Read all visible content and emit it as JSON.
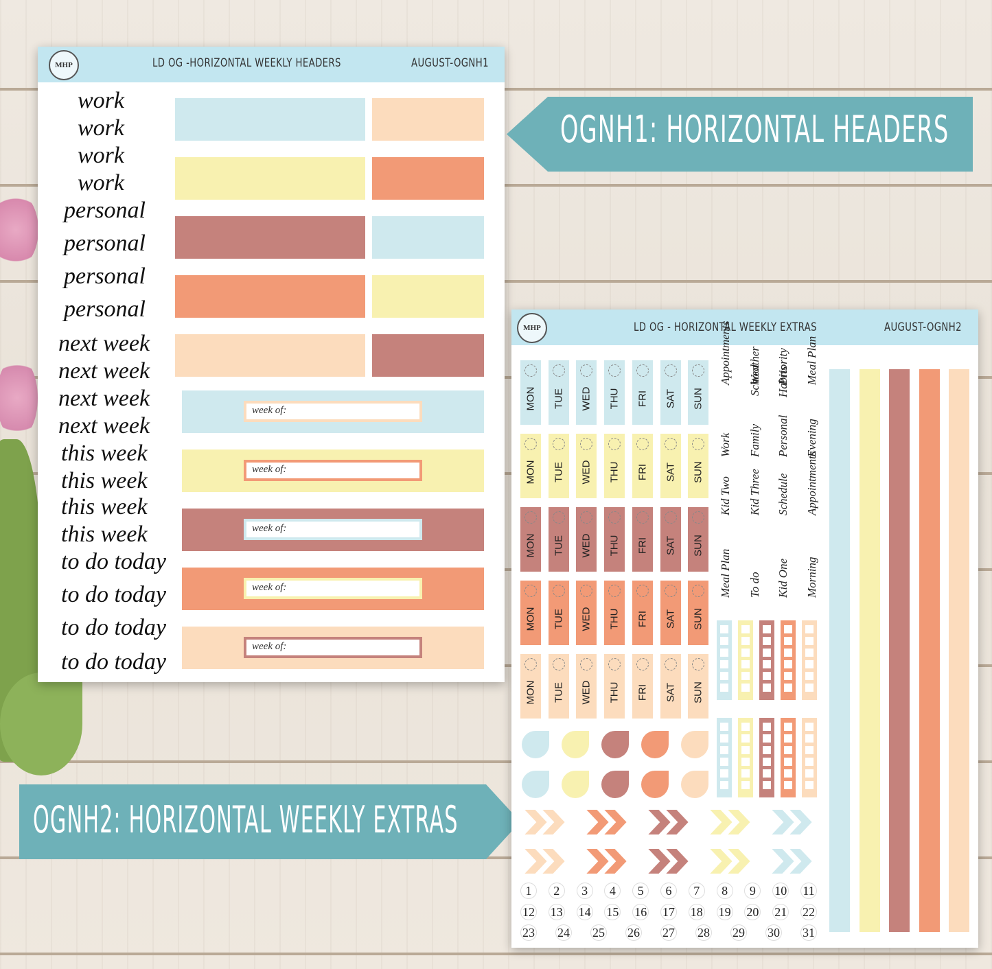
{
  "colors": {
    "blue": "#cfe9ee",
    "peach": "#fcdcbd",
    "yellow": "#f8f1b0",
    "orange": "#f29a76",
    "mauve": "#c5827c",
    "banner": "#6eb1b8",
    "header": "#c2e6f0"
  },
  "sheet1": {
    "logo": "MHP",
    "title": "LD OG -HORIZONTAL WEEKLY HEADERS",
    "code": "AUGUST-OGNH1",
    "words": [
      "work",
      "work",
      "work",
      "work",
      "personal",
      "personal",
      "personal",
      "personal",
      "next week",
      "next week",
      "next week",
      "next week",
      "this week",
      "this week",
      "this week",
      "this week",
      "to do today",
      "to do today",
      "to do today",
      "to do today"
    ],
    "week_of_label": "week of:"
  },
  "banner1": {
    "text": "OGNH1: HORIZONTAL HEADERS"
  },
  "banner2": {
    "text": "OGNH2: HORIZONTAL WEEKLY EXTRAS"
  },
  "sheet2": {
    "logo": "MHP",
    "title": "LD OG - HORIZONTAL WEEKLY EXTRAS",
    "code": "AUGUST-OGNH2",
    "days": [
      "MON",
      "TUE",
      "WED",
      "THU",
      "FRI",
      "SAT",
      "SUN"
    ],
    "word_columns": [
      [
        "Meal Plan",
        "Kid Two",
        "Work",
        "Appointments"
      ],
      [
        "To do",
        "Kid Three",
        "Family",
        "Weather"
      ],
      [
        "Kid One",
        "Schedule",
        "Personal",
        "Priority"
      ],
      [
        "Morning",
        "Appointments",
        "Evening",
        "Meal Plan"
      ]
    ],
    "word_columns_top": [
      "School",
      "Habits"
    ],
    "numbers": [
      "1",
      "2",
      "3",
      "4",
      "5",
      "6",
      "7",
      "8",
      "9",
      "10",
      "11",
      "12",
      "13",
      "14",
      "15",
      "16",
      "17",
      "18",
      "19",
      "20",
      "21",
      "22",
      "23",
      "24",
      "25",
      "26",
      "27",
      "28",
      "29",
      "30",
      "31"
    ]
  }
}
